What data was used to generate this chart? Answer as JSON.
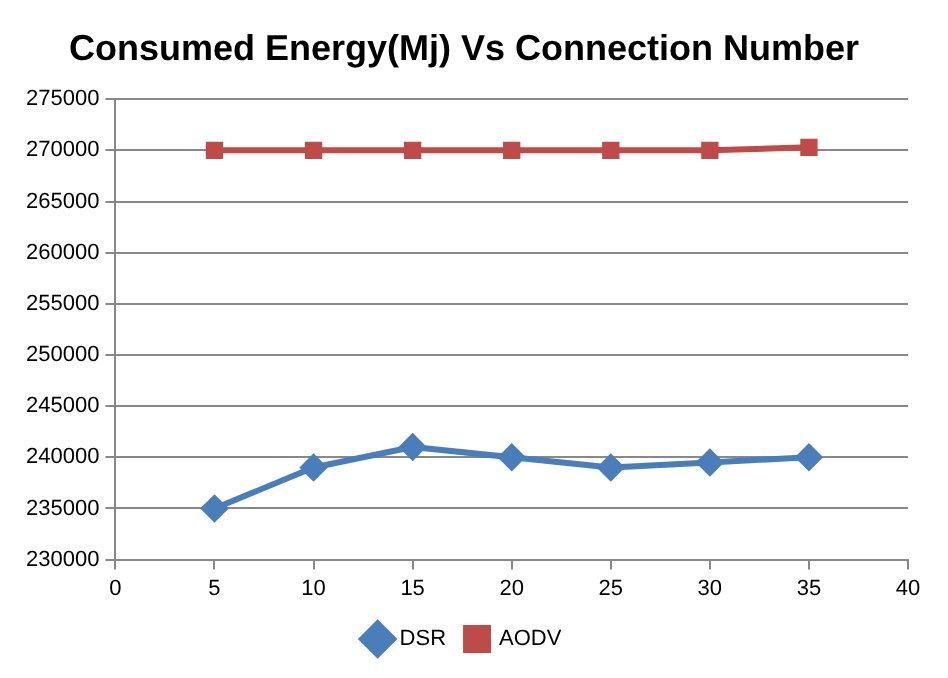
{
  "chart_data": {
    "type": "line",
    "title": "Consumed Energy(Mj) Vs Connection Number",
    "x": [
      5,
      10,
      15,
      20,
      25,
      30,
      35
    ],
    "series": [
      {
        "name": "DSR",
        "color": "#4a7ebb",
        "marker": "diamond",
        "values": [
          235000,
          239000,
          241000,
          240000,
          239000,
          239500,
          240000
        ]
      },
      {
        "name": "AODV",
        "color": "#be4b48",
        "marker": "square",
        "values": [
          270000,
          270000,
          270000,
          270000,
          270000,
          270000,
          270300
        ]
      }
    ],
    "xlim": [
      0,
      40
    ],
    "xticks": [
      0,
      5,
      10,
      15,
      20,
      25,
      30,
      35,
      40
    ],
    "ylim": [
      230000,
      275000
    ],
    "yticks": [
      230000,
      235000,
      240000,
      245000,
      250000,
      255000,
      260000,
      265000,
      270000,
      275000
    ],
    "grid": "y",
    "legend": "bottom"
  }
}
